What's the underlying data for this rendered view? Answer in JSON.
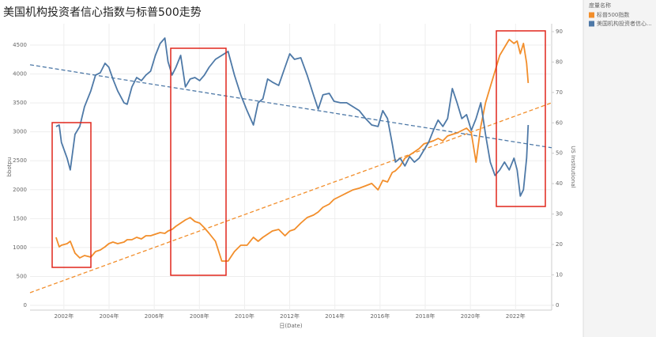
{
  "chart_data": {
    "type": "line",
    "title": "美国机构投资者信心指数与标普500走势",
    "x_label": "日(Date)",
    "y_label": "bbotpu",
    "y2_label": "US Institutional",
    "legend_title": "度量名称",
    "legend": "right",
    "xlim": [
      2000.5,
      2023.6
    ],
    "xticks": [
      {
        "value": 2002,
        "label": "2002年"
      },
      {
        "value": 2004,
        "label": "2004年"
      },
      {
        "value": 2006,
        "label": "2006年"
      },
      {
        "value": 2008,
        "label": "2008年"
      },
      {
        "value": 2010,
        "label": "2010年"
      },
      {
        "value": 2012,
        "label": "2012年"
      },
      {
        "value": 2014,
        "label": "2014年"
      },
      {
        "value": 2016,
        "label": "2016年"
      },
      {
        "value": 2018,
        "label": "2018年"
      },
      {
        "value": 2020,
        "label": "2020年"
      },
      {
        "value": 2022,
        "label": "2022年"
      }
    ],
    "ylim": [
      -82,
      4869
    ],
    "yticks": [
      0,
      500,
      1000,
      1500,
      2000,
      2500,
      3000,
      3500,
      4000,
      4500
    ],
    "y2lim": [
      -1.6,
      92.6
    ],
    "y2ticks": [
      0,
      10,
      20,
      30,
      40,
      50,
      60,
      70,
      80,
      90
    ],
    "grid": true,
    "x": [
      2001.65,
      2001.79,
      2001.89,
      2002.14,
      2002.28,
      2002.49,
      2002.7,
      2002.91,
      2003.19,
      2003.4,
      2003.61,
      2003.82,
      2003.99,
      2004.17,
      2004.38,
      2004.66,
      2004.8,
      2005.01,
      2005.22,
      2005.43,
      2005.63,
      2005.84,
      2006.05,
      2006.26,
      2006.47,
      2006.61,
      2006.79,
      2006.96,
      2007.17,
      2007.38,
      2007.59,
      2007.8,
      2008.01,
      2008.22,
      2008.43,
      2008.71,
      2008.99,
      2009.27,
      2009.55,
      2009.83,
      2010.11,
      2010.39,
      2010.6,
      2010.81,
      2011.02,
      2011.23,
      2011.51,
      2011.79,
      2012.0,
      2012.21,
      2012.49,
      2012.77,
      2013.05,
      2013.26,
      2013.47,
      2013.75,
      2013.96,
      2014.24,
      2014.52,
      2014.8,
      2015.08,
      2015.36,
      2015.63,
      2015.91,
      2016.12,
      2016.33,
      2016.54,
      2016.68,
      2016.89,
      2017.1,
      2017.31,
      2017.52,
      2017.73,
      2017.94,
      2018.15,
      2018.36,
      2018.57,
      2018.78,
      2018.99,
      2019.2,
      2019.41,
      2019.62,
      2019.83,
      2020.04,
      2020.25,
      2020.46,
      2020.67,
      2020.88,
      2021.09,
      2021.3,
      2021.51,
      2021.72,
      2021.93,
      2022.07,
      2022.21,
      2022.35,
      2022.49,
      2022.56
    ],
    "series": [
      {
        "name": "标普500指数",
        "color": "#f28e2b",
        "axis": "y",
        "values": [
          1176,
          1012,
          1040,
          1067,
          1108,
          903,
          821,
          862,
          834,
          930,
          958,
          1012,
          1067,
          1094,
          1067,
          1094,
          1135,
          1135,
          1176,
          1149,
          1204,
          1204,
          1231,
          1259,
          1245,
          1286,
          1313,
          1368,
          1423,
          1477,
          1518,
          1450,
          1423,
          1341,
          1245,
          1108,
          766,
          766,
          930,
          1040,
          1040,
          1176,
          1108,
          1176,
          1231,
          1286,
          1313,
          1204,
          1286,
          1313,
          1423,
          1518,
          1560,
          1614,
          1696,
          1751,
          1833,
          1888,
          1943,
          1997,
          2025,
          2066,
          2107,
          1997,
          2161,
          2134,
          2298,
          2326,
          2408,
          2544,
          2599,
          2654,
          2709,
          2791,
          2818,
          2845,
          2886,
          2845,
          2928,
          2955,
          2982,
          3023,
          3064,
          2982,
          2476,
          3092,
          3502,
          3776,
          4049,
          4323,
          4460,
          4597,
          4528,
          4569,
          4350,
          4528,
          4186,
          3844
        ],
        "trend": {
          "x": [
            2000.5,
            2023.6
          ],
          "values": [
            219,
            3502
          ]
        }
      },
      {
        "name": "美国机构投资者信心...",
        "color": "#4e79a7",
        "axis": "y2",
        "values": [
          58.8,
          59.3,
          53.6,
          48.4,
          44.5,
          56.2,
          58.8,
          65.3,
          70.5,
          75.7,
          76.5,
          79.6,
          78.3,
          74.4,
          70.5,
          66.6,
          66.1,
          71.8,
          74.9,
          73.9,
          75.7,
          77.0,
          82.2,
          86.1,
          87.9,
          80.1,
          75.7,
          78.3,
          82.2,
          71.8,
          74.4,
          74.9,
          73.9,
          75.7,
          78.3,
          80.9,
          82.2,
          83.5,
          75.7,
          69.2,
          64.0,
          59.3,
          66.6,
          67.9,
          74.4,
          73.4,
          72.3,
          78.3,
          82.7,
          80.9,
          81.4,
          75.7,
          69.2,
          64.5,
          69.2,
          69.7,
          67.1,
          66.6,
          66.6,
          65.3,
          64.0,
          61.4,
          59.3,
          58.8,
          64.0,
          61.4,
          53.1,
          47.1,
          48.4,
          45.8,
          48.9,
          47.1,
          48.4,
          51.0,
          53.6,
          57.5,
          60.9,
          58.8,
          61.4,
          71.3,
          66.6,
          61.4,
          62.7,
          57.5,
          61.4,
          66.6,
          56.2,
          47.1,
          42.7,
          44.5,
          47.1,
          44.5,
          48.4,
          44.5,
          35.9,
          38.0,
          48.4,
          59.3
        ],
        "trend": {
          "x": [
            2000.5,
            2023.6
          ],
          "values": [
            79.1,
            51.8
          ]
        }
      }
    ]
  }
}
